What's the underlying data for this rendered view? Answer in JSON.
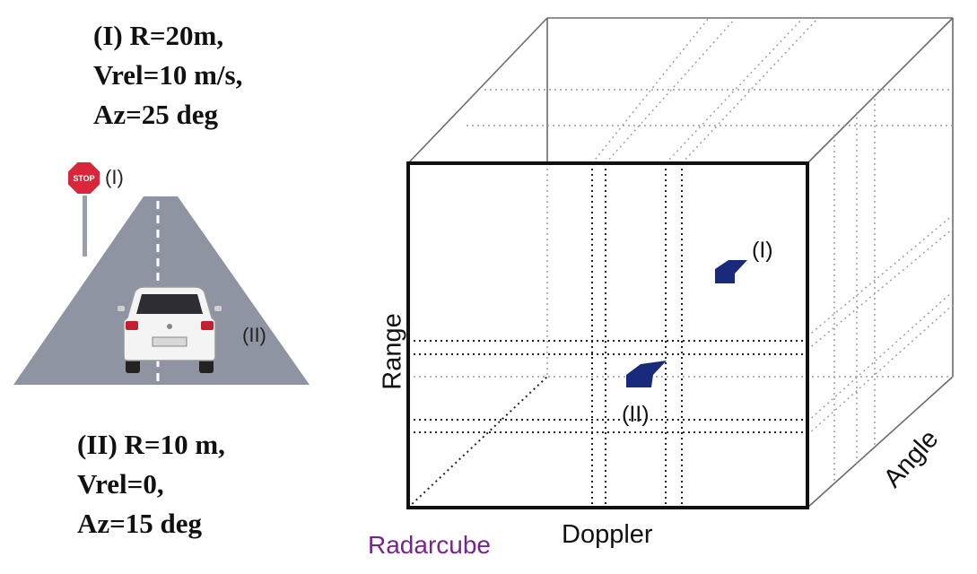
{
  "target_i": {
    "line1": "(I) R=20m,",
    "line2": "Vrel=10 m/s,",
    "line3": "Az=25 deg"
  },
  "target_ii": {
    "line1": "(II) R=10 m,",
    "line2": "Vrel=0,",
    "line3": "Az=15 deg"
  },
  "scene": {
    "sign_text": "STOP",
    "label_i": "(I)",
    "label_ii": "(II)"
  },
  "cube": {
    "axis_range": "Range",
    "axis_doppler": "Doppler",
    "axis_angle": "Angle",
    "caption": "Radarcube",
    "marker_i_label": "(I)",
    "marker_ii_label": "(II)"
  },
  "colors": {
    "road": "#8f94a3",
    "sign": "#d9263a",
    "marker": "#1a2a7a",
    "caption": "#7a2390"
  }
}
